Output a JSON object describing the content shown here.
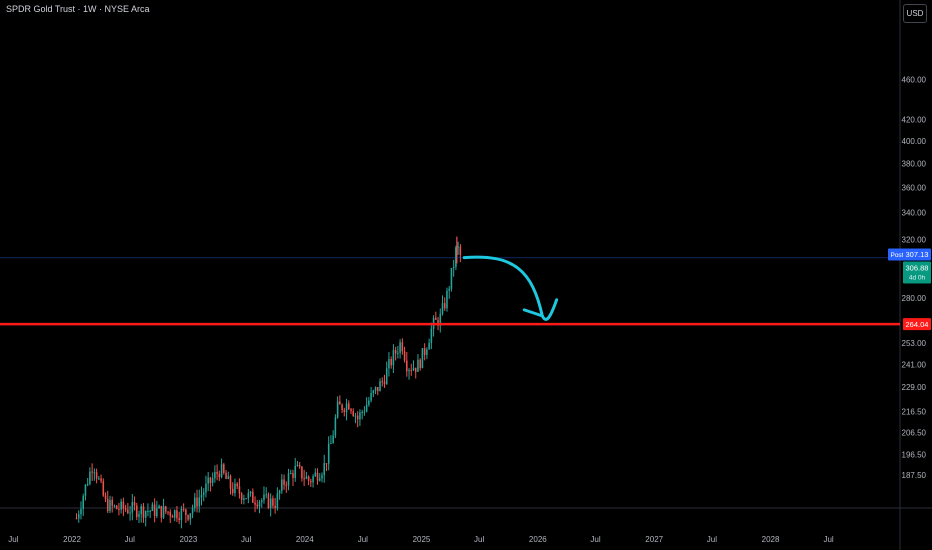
{
  "header": {
    "title": "SPDR Gold Trust · 1W · NYSE Arca",
    "currency_label": "USD"
  },
  "colors": {
    "background": "#000000",
    "up": "#26a69a",
    "down": "#ef5350",
    "support": "#ff1a1a",
    "arrow": "#1ec8e0",
    "price_line": "#2962ff"
  },
  "chart_data": {
    "type": "candlestick",
    "title": "SPDR Gold Trust · 1W · NYSE Arca",
    "y_scale": "log",
    "ylim": [
      180,
      490
    ],
    "x_range": [
      "2021-05-20",
      "2029-02-10"
    ],
    "y_ticks": [
      "460.00",
      "420.00",
      "400.00",
      "380.00",
      "360.00",
      "340.00",
      "320.00",
      "280.00",
      "253.00",
      "241.00",
      "229.00",
      "216.50",
      "206.50",
      "196.50",
      "187.50"
    ],
    "x_ticks": [
      {
        "label": "Jul",
        "date": "2021-07-01"
      },
      {
        "label": "2022",
        "date": "2022-01-01"
      },
      {
        "label": "Jul",
        "date": "2022-07-01"
      },
      {
        "label": "2023",
        "date": "2023-01-01"
      },
      {
        "label": "Jul",
        "date": "2023-07-01"
      },
      {
        "label": "2024",
        "date": "2024-01-01"
      },
      {
        "label": "Jul",
        "date": "2024-07-01"
      },
      {
        "label": "2025",
        "date": "2025-01-01"
      },
      {
        "label": "Jul",
        "date": "2025-07-01"
      },
      {
        "label": "2026",
        "date": "2026-01-01"
      },
      {
        "label": "Jul",
        "date": "2026-07-01"
      },
      {
        "label": "2027",
        "date": "2027-01-01"
      },
      {
        "label": "Jul",
        "date": "2027-07-01"
      },
      {
        "label": "2028",
        "date": "2028-01-01"
      },
      {
        "label": "Jul",
        "date": "2028-07-01"
      }
    ],
    "price_path": [
      [
        "2022-01-15",
        170
      ],
      [
        "2022-03-08",
        193
      ],
      [
        "2022-04-15",
        176
      ],
      [
        "2022-05-10",
        174
      ],
      [
        "2023-01-01",
        172
      ],
      [
        "2023-04-10",
        190
      ],
      [
        "2023-05-15",
        182
      ],
      [
        "2023-07-15",
        178
      ],
      [
        "2023-10-01",
        176
      ],
      [
        "2023-10-25",
        184
      ],
      [
        "2023-12-04",
        190
      ],
      [
        "2024-01-15",
        185
      ],
      [
        "2024-03-01",
        191
      ],
      [
        "2024-03-25",
        202
      ],
      [
        "2024-04-12",
        218
      ],
      [
        "2024-05-20",
        221
      ],
      [
        "2024-06-15",
        213
      ],
      [
        "2024-07-20",
        222
      ],
      [
        "2024-09-01",
        232
      ],
      [
        "2024-10-01",
        244
      ],
      [
        "2024-10-30",
        254
      ],
      [
        "2024-11-18",
        240
      ],
      [
        "2024-12-20",
        240
      ],
      [
        "2025-01-10",
        248
      ],
      [
        "2025-02-05",
        263
      ],
      [
        "2025-03-01",
        268
      ],
      [
        "2025-03-20",
        280
      ],
      [
        "2025-04-10",
        300
      ],
      [
        "2025-04-22",
        315
      ],
      [
        "2025-05-05",
        307
      ]
    ],
    "support_line": {
      "value": 264.04,
      "label": "264.04"
    },
    "last_price": {
      "value": 306.88,
      "label": "306.88",
      "countdown": "4d 0h"
    },
    "post_price": {
      "value": 307.13,
      "label": "307.13",
      "tag": "Post"
    },
    "projection_arrow": {
      "from": {
        "date": "2025-05-15",
        "value": 307
      },
      "to": {
        "date": "2026-01-15",
        "value": 269
      },
      "end": {
        "date": "2026-03-01",
        "value": 279
      }
    }
  }
}
